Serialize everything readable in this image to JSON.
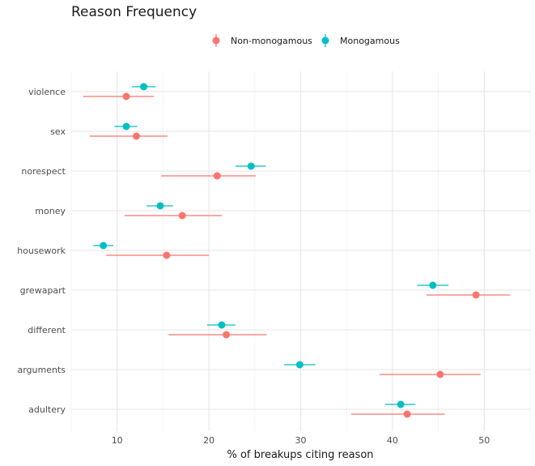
{
  "chart_data": {
    "type": "scatter",
    "title": "Reason Frequency",
    "xlabel": "% of breakups citing reason",
    "ylabel": "",
    "xlim": [
      5,
      55
    ],
    "x_ticks": [
      10,
      20,
      30,
      40,
      50
    ],
    "categories": [
      "violence",
      "sex",
      "norespect",
      "money",
      "housework",
      "grewapart",
      "different",
      "arguments",
      "adultery"
    ],
    "legend_position": "top",
    "grid": true,
    "series": [
      {
        "name": "Non-monogamous",
        "color": "#F8766D",
        "points": [
          {
            "category": "violence",
            "value": 11.0,
            "low": 6.3,
            "high": 14.0
          },
          {
            "category": "sex",
            "value": 12.1,
            "low": 7.0,
            "high": 15.5
          },
          {
            "category": "norespect",
            "value": 20.9,
            "low": 14.8,
            "high": 25.1
          },
          {
            "category": "money",
            "value": 17.1,
            "low": 10.8,
            "high": 21.4
          },
          {
            "category": "housework",
            "value": 15.4,
            "low": 8.8,
            "high": 20.0
          },
          {
            "category": "grewapart",
            "value": 49.1,
            "low": 43.7,
            "high": 52.8
          },
          {
            "category": "different",
            "value": 21.9,
            "low": 15.6,
            "high": 26.3
          },
          {
            "category": "arguments",
            "value": 45.2,
            "low": 38.6,
            "high": 49.6
          },
          {
            "category": "adultery",
            "value": 41.6,
            "low": 35.5,
            "high": 45.7
          }
        ]
      },
      {
        "name": "Monogamous",
        "color": "#00BFC4",
        "points": [
          {
            "category": "violence",
            "value": 12.9,
            "low": 11.6,
            "high": 14.2
          },
          {
            "category": "sex",
            "value": 11.0,
            "low": 9.7,
            "high": 12.2
          },
          {
            "category": "norespect",
            "value": 24.6,
            "low": 22.9,
            "high": 26.2
          },
          {
            "category": "money",
            "value": 14.7,
            "low": 13.2,
            "high": 16.1
          },
          {
            "category": "housework",
            "value": 8.5,
            "low": 7.4,
            "high": 9.6
          },
          {
            "category": "grewapart",
            "value": 44.4,
            "low": 42.7,
            "high": 46.1
          },
          {
            "category": "different",
            "value": 21.4,
            "low": 19.8,
            "high": 22.9
          },
          {
            "category": "arguments",
            "value": 29.9,
            "low": 28.2,
            "high": 31.6
          },
          {
            "category": "adultery",
            "value": 40.9,
            "low": 39.2,
            "high": 42.5
          }
        ]
      }
    ]
  }
}
